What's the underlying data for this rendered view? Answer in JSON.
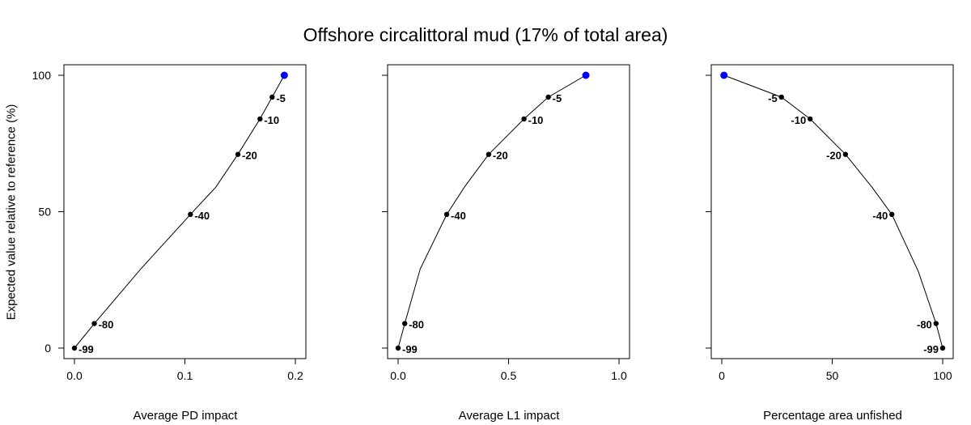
{
  "title": "Offshore circalittoral mud (17% of total area)",
  "ylabel": "Expected value relative to reference (%)",
  "chart_data": [
    {
      "type": "line",
      "xlabel": "Average PD impact",
      "xlim": [
        0,
        0.2
      ],
      "ylim": [
        0,
        100
      ],
      "xticks": [
        "0.0",
        "0.1",
        "0.2"
      ],
      "yticks": [
        "0",
        "50",
        "100"
      ],
      "show_y_tick_labels": true,
      "curve": {
        "x": [
          0.0,
          0.018,
          0.06,
          0.105,
          0.128,
          0.148,
          0.168,
          0.179,
          0.19
        ],
        "y": [
          0,
          9,
          29,
          49,
          59,
          71,
          84,
          92,
          100
        ]
      },
      "points": [
        {
          "x": 0.0,
          "y": 0,
          "label": "-99"
        },
        {
          "x": 0.018,
          "y": 9,
          "label": "-80"
        },
        {
          "x": 0.105,
          "y": 49,
          "label": "-40"
        },
        {
          "x": 0.148,
          "y": 71,
          "label": "-20"
        },
        {
          "x": 0.168,
          "y": 84,
          "label": "-10"
        },
        {
          "x": 0.179,
          "y": 92,
          "label": "-5"
        },
        {
          "x": 0.19,
          "y": 100,
          "label": "",
          "highlight": true
        }
      ],
      "label_side": "right"
    },
    {
      "type": "line",
      "xlabel": "Average L1 impact",
      "xlim": [
        0,
        1.0
      ],
      "ylim": [
        0,
        100
      ],
      "xticks": [
        "0.0",
        "0.5",
        "1.0"
      ],
      "yticks": [
        "0",
        "50",
        "100"
      ],
      "show_y_tick_labels": false,
      "curve": {
        "x": [
          0.0,
          0.03,
          0.1,
          0.22,
          0.3,
          0.41,
          0.57,
          0.68,
          0.85
        ],
        "y": [
          0,
          9,
          29,
          49,
          59,
          71,
          84,
          92,
          100
        ]
      },
      "points": [
        {
          "x": 0.0,
          "y": 0,
          "label": "-99"
        },
        {
          "x": 0.03,
          "y": 9,
          "label": "-80"
        },
        {
          "x": 0.22,
          "y": 49,
          "label": "-40"
        },
        {
          "x": 0.41,
          "y": 71,
          "label": "-20"
        },
        {
          "x": 0.57,
          "y": 84,
          "label": "-10"
        },
        {
          "x": 0.68,
          "y": 92,
          "label": "-5"
        },
        {
          "x": 0.85,
          "y": 100,
          "label": "",
          "highlight": true
        }
      ],
      "label_side": "right"
    },
    {
      "type": "line",
      "xlabel": "Percentage area unfished",
      "xlim": [
        0,
        100
      ],
      "ylim": [
        0,
        100
      ],
      "xticks": [
        "0",
        "50",
        "100"
      ],
      "yticks": [
        "0",
        "50",
        "100"
      ],
      "show_y_tick_labels": false,
      "curve": {
        "x": [
          1,
          27,
          40,
          56,
          68,
          77,
          89,
          97,
          100
        ],
        "y": [
          100,
          92,
          84,
          71,
          59,
          49,
          28,
          9,
          0
        ]
      },
      "points": [
        {
          "x": 1,
          "y": 100,
          "label": "",
          "highlight": true
        },
        {
          "x": 27,
          "y": 92,
          "label": "-5"
        },
        {
          "x": 40,
          "y": 84,
          "label": "-10"
        },
        {
          "x": 56,
          "y": 71,
          "label": "-20"
        },
        {
          "x": 77,
          "y": 49,
          "label": "-40"
        },
        {
          "x": 97,
          "y": 9,
          "label": "-80"
        },
        {
          "x": 100,
          "y": 0,
          "label": "-99"
        }
      ],
      "label_side": "left"
    }
  ],
  "colors": {
    "point": "#000000",
    "highlight": "#0000ff",
    "line": "#000000"
  }
}
